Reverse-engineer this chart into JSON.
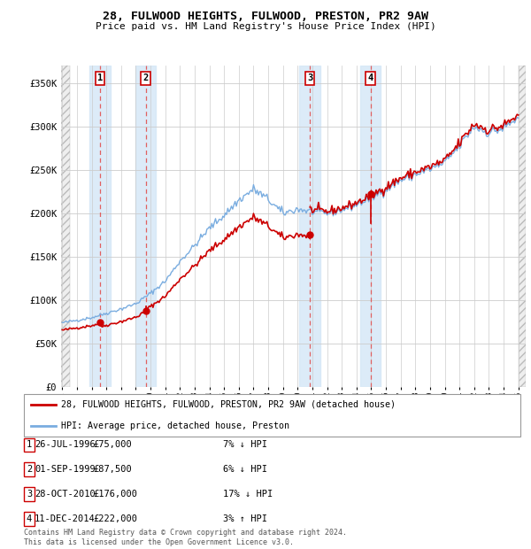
{
  "title1": "28, FULWOOD HEIGHTS, FULWOOD, PRESTON, PR2 9AW",
  "title2": "Price paid vs. HM Land Registry's House Price Index (HPI)",
  "ylim": [
    0,
    370000
  ],
  "yticks": [
    0,
    50000,
    100000,
    150000,
    200000,
    250000,
    300000,
    350000
  ],
  "ytick_labels": [
    "£0",
    "£50K",
    "£100K",
    "£150K",
    "£200K",
    "£250K",
    "£300K",
    "£350K"
  ],
  "xlim_start": 1993.92,
  "xlim_end": 2025.5,
  "sale_dates": [
    1996.57,
    1999.67,
    2010.83,
    2014.95
  ],
  "sale_prices": [
    75000,
    87500,
    176000,
    222000
  ],
  "sale_labels": [
    "1",
    "2",
    "3",
    "4"
  ],
  "sale_info": [
    {
      "num": "1",
      "date": "26-JUL-1996",
      "price": "£75,000",
      "hpi": "7% ↓ HPI"
    },
    {
      "num": "2",
      "date": "01-SEP-1999",
      "price": "£87,500",
      "hpi": "6% ↓ HPI"
    },
    {
      "num": "3",
      "date": "28-OCT-2010",
      "price": "£176,000",
      "hpi": "17% ↓ HPI"
    },
    {
      "num": "4",
      "date": "11-DEC-2014",
      "price": "£222,000",
      "hpi": "3% ↑ HPI"
    }
  ],
  "legend_line1": "28, FULWOOD HEIGHTS, FULWOOD, PRESTON, PR2 9AW (detached house)",
  "legend_line2": "HPI: Average price, detached house, Preston",
  "footer": "Contains HM Land Registry data © Crown copyright and database right 2024.\nThis data is licensed under the Open Government Licence v3.0.",
  "line_color_red": "#cc0000",
  "line_color_blue": "#7aade0",
  "dot_color": "#cc0000",
  "shade_color": "#d6e8f7",
  "grid_color": "#cccccc",
  "dashed_color": "#e06060"
}
